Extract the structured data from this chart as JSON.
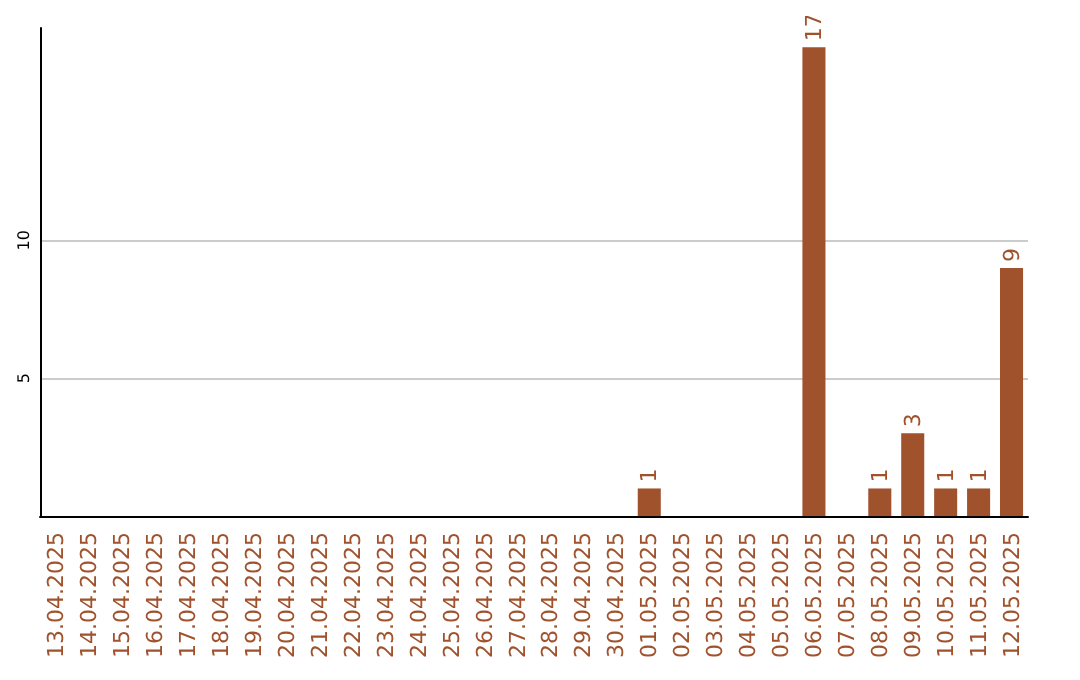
{
  "chart_data": {
    "type": "bar",
    "categories": [
      "13.04.2025",
      "14.04.2025",
      "15.04.2025",
      "16.04.2025",
      "17.04.2025",
      "18.04.2025",
      "19.04.2025",
      "20.04.2025",
      "21.04.2025",
      "22.04.2025",
      "23.04.2025",
      "24.04.2025",
      "25.04.2025",
      "26.04.2025",
      "27.04.2025",
      "28.04.2025",
      "29.04.2025",
      "30.04.2025",
      "01.05.2025",
      "02.05.2025",
      "03.05.2025",
      "04.05.2025",
      "05.05.2025",
      "06.05.2025",
      "07.05.2025",
      "08.05.2025",
      "09.05.2025",
      "10.05.2025",
      "11.05.2025",
      "12.05.2025"
    ],
    "values": [
      0,
      0,
      0,
      0,
      0,
      0,
      0,
      0,
      0,
      0,
      0,
      0,
      0,
      0,
      0,
      0,
      0,
      0,
      1,
      0,
      0,
      0,
      0,
      17,
      0,
      1,
      3,
      1,
      1,
      9
    ],
    "value_labels": [
      null,
      null,
      null,
      null,
      null,
      null,
      null,
      null,
      null,
      null,
      null,
      null,
      null,
      null,
      null,
      null,
      null,
      null,
      "1",
      null,
      null,
      null,
      null,
      "17",
      null,
      "1",
      "3",
      "1",
      "1",
      "9"
    ],
    "color": "#a0522d",
    "ylim": [
      0,
      17.7
    ],
    "yticks": [
      5,
      10
    ],
    "grid": "y"
  }
}
